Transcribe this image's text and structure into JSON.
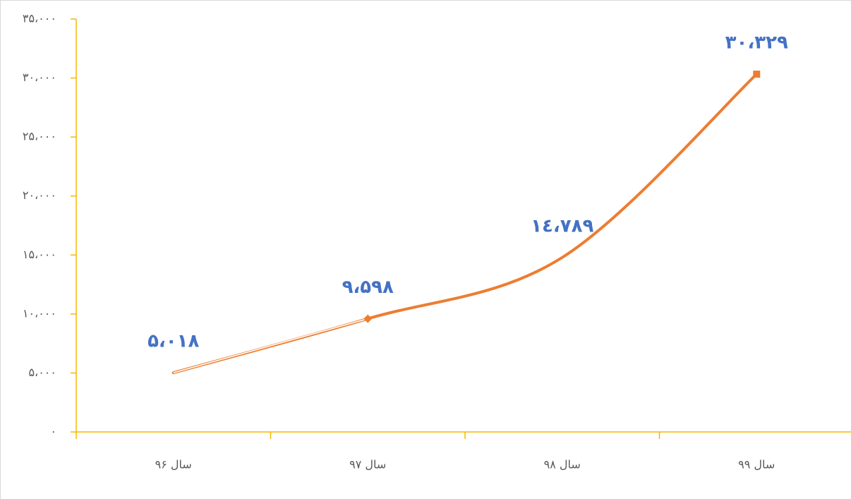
{
  "chart_data": {
    "type": "line",
    "categories": [
      "سال ۹۶",
      "سال ۹۷",
      "سال ۹۸",
      "سال ۹۹"
    ],
    "series": [
      {
        "color": "#ed7d31",
        "values": [
          5018,
          9598,
          14789,
          30329
        ],
        "value_labels": [
          "۵،۰۱۸",
          "۹،۵۹۸",
          "۱٤،۷۸۹",
          "۳۰،۳۲۹"
        ],
        "label_color": "#4472c4",
        "markers": [
          "none",
          "diamond",
          "none",
          "square"
        ],
        "hollow_segments": [
          0
        ],
        "smooth": true
      }
    ],
    "ylim": [
      0,
      35000
    ],
    "yticks": [
      {
        "value": 0,
        "label": "۰"
      },
      {
        "value": 5000,
        "label": "۵،۰۰۰"
      },
      {
        "value": 10000,
        "label": "۱۰،۰۰۰"
      },
      {
        "value": 15000,
        "label": "۱۵،۰۰۰"
      },
      {
        "value": 20000,
        "label": "۲۰،۰۰۰"
      },
      {
        "value": 25000,
        "label": "۲۵،۰۰۰"
      },
      {
        "value": 30000,
        "label": "۳۰،۰۰۰"
      },
      {
        "value": 35000,
        "label": "۳۵،۰۰۰"
      }
    ],
    "axis_color": "#f5b800",
    "grid": false
  }
}
